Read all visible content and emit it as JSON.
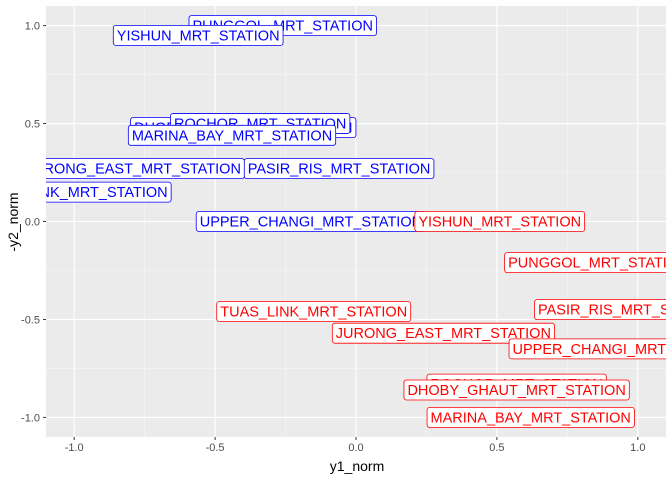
{
  "chart_data": {
    "type": "scatter",
    "xlabel": "y1_norm",
    "ylabel": "-y2_norm",
    "xlim": [
      -1.1,
      1.1
    ],
    "ylim": [
      -1.1,
      1.1
    ],
    "x_ticks": [
      -1.0,
      -0.5,
      0.0,
      0.5,
      1.0
    ],
    "x_tick_labels": [
      "-1.0",
      "-0.5",
      "0.0",
      "0.5",
      "1.0"
    ],
    "y_ticks": [
      -1.0,
      -0.5,
      0.0,
      0.5,
      1.0
    ],
    "y_tick_labels": [
      "-1.0",
      "-0.5",
      "0.0",
      "0.5",
      "1.0"
    ],
    "grid": true,
    "colors": {
      "panel": "#ebebeb",
      "grid_major": "#ffffff",
      "blue": "#0000ff",
      "red": "#ff0000"
    },
    "series": [
      {
        "color": "blue",
        "points": [
          {
            "label": "PUNGGOL_MRT_STATION",
            "x": -0.26,
            "y": 1.0
          },
          {
            "label": "YISHUN_MRT_STATION",
            "x": -0.56,
            "y": 0.95
          },
          {
            "label": "DHOBY_GHAUT_MRT_STATION",
            "x": -0.4,
            "y": 0.48
          },
          {
            "label": "ROCHOR_MRT_STATION",
            "x": -0.34,
            "y": 0.5
          },
          {
            "label": "MARINA_BAY_MRT_STATION",
            "x": -0.44,
            "y": 0.44
          },
          {
            "label": "JURONG_EAST_MRT_STATION",
            "x": -0.79,
            "y": 0.27
          },
          {
            "label": "PASIR_RIS_MRT_STATION",
            "x": -0.06,
            "y": 0.27
          },
          {
            "label": "TUAS_LINK_MRT_STATION",
            "x": -1.0,
            "y": 0.15
          },
          {
            "label": "UPPER_CHANGI_MRT_STATION",
            "x": -0.16,
            "y": 0.0
          }
        ]
      },
      {
        "color": "red",
        "points": [
          {
            "label": "YISHUN_MRT_STATION",
            "x": 0.51,
            "y": 0.0
          },
          {
            "label": "PUNGGOL_MRT_STATION",
            "x": 0.86,
            "y": -0.21
          },
          {
            "label": "PASIR_RIS_MRT_STATION",
            "x": 0.97,
            "y": -0.45
          },
          {
            "label": "TUAS_LINK_MRT_STATION",
            "x": -0.15,
            "y": -0.46
          },
          {
            "label": "JURONG_EAST_MRT_STATION",
            "x": 0.31,
            "y": -0.57
          },
          {
            "label": "UPPER_CHANGI_MRT_STATION",
            "x": 0.95,
            "y": -0.65
          },
          {
            "label": "ROCHOR_MRT_STATION",
            "x": 0.57,
            "y": -0.83
          },
          {
            "label": "DHOBY_GHAUT_MRT_STATION",
            "x": 0.57,
            "y": -0.86
          },
          {
            "label": "MARINA_BAY_MRT_STATION",
            "x": 0.62,
            "y": -1.0
          }
        ]
      }
    ]
  }
}
